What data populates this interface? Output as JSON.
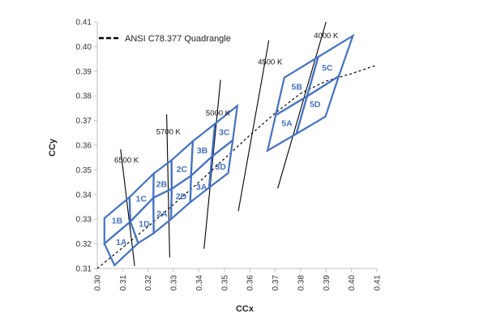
{
  "chart_data": {
    "type": "line",
    "xlabel": "CCx",
    "ylabel": "CCy",
    "xlim": [
      0.3,
      0.41
    ],
    "ylim": [
      0.31,
      0.41
    ],
    "x_ticks": [
      "0.30",
      "0.31",
      "0.32",
      "0.33",
      "0.34",
      "0.35",
      "0.36",
      "0.37",
      "0.38",
      "0.39",
      "0.40",
      "0.41"
    ],
    "y_ticks": [
      "0.31",
      "0.32",
      "0.33",
      "0.34",
      "0.35",
      "0.36",
      "0.37",
      "0.38",
      "0.39",
      "0.40",
      "0.41"
    ],
    "grid": false,
    "legend_position": "top-left",
    "legend": [
      {
        "label": "ANSI C78.377 Quadrangle",
        "style": "dashed",
        "color": "#000000"
      }
    ],
    "colors": {
      "bins": "#4472c4",
      "planckian": "#000000",
      "isotherms": "#000000"
    },
    "planckian_locus": [
      [
        0.3,
        0.31
      ],
      [
        0.31,
        0.3185
      ],
      [
        0.32,
        0.327
      ],
      [
        0.33,
        0.336
      ],
      [
        0.34,
        0.345
      ],
      [
        0.35,
        0.3545
      ],
      [
        0.36,
        0.364
      ],
      [
        0.37,
        0.373
      ],
      [
        0.38,
        0.381
      ],
      [
        0.39,
        0.386
      ],
      [
        0.4,
        0.389
      ],
      [
        0.41,
        0.3925
      ]
    ],
    "isotherms": [
      {
        "label": "6500 K",
        "points": [
          [
            0.3092,
            0.3583
          ],
          [
            0.3147,
            0.311
          ]
        ]
      },
      {
        "label": "5700 K",
        "points": [
          [
            0.3273,
            0.3725
          ],
          [
            0.3285,
            0.3145
          ]
        ]
      },
      {
        "label": "5000 K",
        "points": [
          [
            0.3485,
            0.3865
          ],
          [
            0.342,
            0.318
          ]
        ]
      },
      {
        "label": "4500 K",
        "points": [
          [
            0.3675,
            0.4025
          ],
          [
            0.3555,
            0.3333
          ]
        ]
      },
      {
        "label": "4000 K",
        "points": [
          [
            0.39,
            0.41
          ],
          [
            0.371,
            0.3425
          ]
        ]
      }
    ],
    "cct_labels": [
      {
        "text": "6500 K",
        "x": 0.3115,
        "y": 0.353
      },
      {
        "text": "5700 K",
        "x": 0.328,
        "y": 0.3645
      },
      {
        "text": "5000 K",
        "x": 0.3475,
        "y": 0.372
      },
      {
        "text": "4500 K",
        "x": 0.368,
        "y": 0.3928
      },
      {
        "text": "4000 K",
        "x": 0.39,
        "y": 0.4034
      }
    ],
    "quadrangles": [
      {
        "name": "1A",
        "points": [
          [
            0.3028,
            0.3201
          ],
          [
            0.3068,
            0.3113
          ],
          [
            0.3161,
            0.3203
          ],
          [
            0.313,
            0.329
          ]
        ]
      },
      {
        "name": "1B",
        "points": [
          [
            0.3028,
            0.3304
          ],
          [
            0.3028,
            0.3201
          ],
          [
            0.313,
            0.329
          ],
          [
            0.3127,
            0.3389
          ]
        ]
      },
      {
        "name": "1C",
        "points": [
          [
            0.3127,
            0.3389
          ],
          [
            0.313,
            0.329
          ],
          [
            0.3221,
            0.3387
          ],
          [
            0.3222,
            0.3485
          ]
        ]
      },
      {
        "name": "1D",
        "points": [
          [
            0.313,
            0.329
          ],
          [
            0.3161,
            0.3203
          ],
          [
            0.3222,
            0.3243
          ],
          [
            0.3221,
            0.3387
          ]
        ]
      },
      {
        "name": "2A",
        "points": [
          [
            0.3221,
            0.3387
          ],
          [
            0.3222,
            0.3243
          ],
          [
            0.329,
            0.33
          ],
          [
            0.3293,
            0.3423
          ]
        ]
      },
      {
        "name": "2B",
        "points": [
          [
            0.3221,
            0.3387
          ],
          [
            0.3293,
            0.3423
          ],
          [
            0.3292,
            0.3539
          ],
          [
            0.3222,
            0.3485
          ]
        ]
      },
      {
        "name": "2C",
        "points": [
          [
            0.3293,
            0.3423
          ],
          [
            0.3369,
            0.3476
          ],
          [
            0.3376,
            0.3616
          ],
          [
            0.3292,
            0.3539
          ]
        ]
      },
      {
        "name": "2D",
        "points": [
          [
            0.329,
            0.33
          ],
          [
            0.3366,
            0.3369
          ],
          [
            0.3369,
            0.3476
          ],
          [
            0.3293,
            0.3423
          ]
        ]
      },
      {
        "name": "3A",
        "points": [
          [
            0.3366,
            0.3369
          ],
          [
            0.344,
            0.3428
          ],
          [
            0.3451,
            0.3554
          ],
          [
            0.3369,
            0.3476
          ]
        ]
      },
      {
        "name": "3B",
        "points": [
          [
            0.3369,
            0.3476
          ],
          [
            0.3451,
            0.3554
          ],
          [
            0.3463,
            0.3687
          ],
          [
            0.3376,
            0.3616
          ]
        ]
      },
      {
        "name": "3C",
        "points": [
          [
            0.3451,
            0.3554
          ],
          [
            0.3533,
            0.362
          ],
          [
            0.3551,
            0.376
          ],
          [
            0.3463,
            0.3687
          ]
        ]
      },
      {
        "name": "3D",
        "points": [
          [
            0.344,
            0.3428
          ],
          [
            0.3515,
            0.3487
          ],
          [
            0.3533,
            0.362
          ],
          [
            0.3451,
            0.3554
          ]
        ]
      },
      {
        "name": "5A",
        "points": [
          [
            0.367,
            0.3578
          ],
          [
            0.3702,
            0.3722
          ],
          [
            0.3825,
            0.3798
          ],
          [
            0.3783,
            0.3646
          ]
        ]
      },
      {
        "name": "5B",
        "points": [
          [
            0.3702,
            0.3722
          ],
          [
            0.3825,
            0.3798
          ],
          [
            0.3869,
            0.3958
          ],
          [
            0.3736,
            0.3874
          ]
        ]
      },
      {
        "name": "5C",
        "points": [
          [
            0.3825,
            0.3798
          ],
          [
            0.395,
            0.388
          ],
          [
            0.4006,
            0.4044
          ],
          [
            0.3869,
            0.3958
          ]
        ]
      },
      {
        "name": "5D",
        "points": [
          [
            0.3783,
            0.3646
          ],
          [
            0.3898,
            0.3716
          ],
          [
            0.395,
            0.388
          ],
          [
            0.3825,
            0.3798
          ]
        ]
      }
    ],
    "bin_labels": [
      {
        "text": "1A",
        "x": 0.3095,
        "y": 0.3208
      },
      {
        "text": "1B",
        "x": 0.3078,
        "y": 0.3295
      },
      {
        "text": "1C",
        "x": 0.3173,
        "y": 0.3385
      },
      {
        "text": "1D",
        "x": 0.3185,
        "y": 0.3282
      },
      {
        "text": "2A",
        "x": 0.3255,
        "y": 0.3324
      },
      {
        "text": "2B",
        "x": 0.3253,
        "y": 0.3443
      },
      {
        "text": "2C",
        "x": 0.3333,
        "y": 0.3504
      },
      {
        "text": "2D",
        "x": 0.333,
        "y": 0.3395
      },
      {
        "text": "3A",
        "x": 0.341,
        "y": 0.3433
      },
      {
        "text": "3B",
        "x": 0.3413,
        "y": 0.3581
      },
      {
        "text": "3C",
        "x": 0.35,
        "y": 0.3655
      },
      {
        "text": "3D",
        "x": 0.3485,
        "y": 0.3514
      },
      {
        "text": "5A",
        "x": 0.3746,
        "y": 0.3691
      },
      {
        "text": "5B",
        "x": 0.3785,
        "y": 0.3838
      },
      {
        "text": "5C",
        "x": 0.3905,
        "y": 0.3916
      },
      {
        "text": "5D",
        "x": 0.3857,
        "y": 0.3768
      }
    ]
  }
}
